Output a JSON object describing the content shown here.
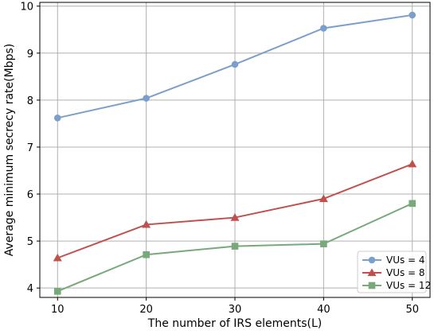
{
  "chart_data": {
    "type": "line",
    "title": "",
    "xlabel": "The number of IRS elements(L)",
    "ylabel": "Average minimum secrecy rate(Mbps)",
    "x": [
      10,
      20,
      30,
      40,
      50
    ],
    "xticks": [
      "10",
      "20",
      "30",
      "40",
      "50"
    ],
    "yticks": [
      "4",
      "5",
      "6",
      "7",
      "8",
      "9",
      "10"
    ],
    "xlim": [
      8,
      52
    ],
    "ylim": [
      3.8,
      10.08
    ],
    "grid": true,
    "legend_position": "lower-right",
    "series": [
      {
        "name": "VUs = 4",
        "values": [
          7.62,
          8.04,
          8.76,
          9.53,
          9.81
        ],
        "color": "#7b9fcc",
        "marker": "circle"
      },
      {
        "name": "VUs = 8",
        "values": [
          4.64,
          5.35,
          5.5,
          5.9,
          6.64
        ],
        "color": "#c0504d",
        "marker": "triangle"
      },
      {
        "name": "VUs = 12",
        "values": [
          3.93,
          4.71,
          4.89,
          4.94,
          5.8
        ],
        "color": "#77a97a",
        "marker": "square"
      }
    ]
  }
}
